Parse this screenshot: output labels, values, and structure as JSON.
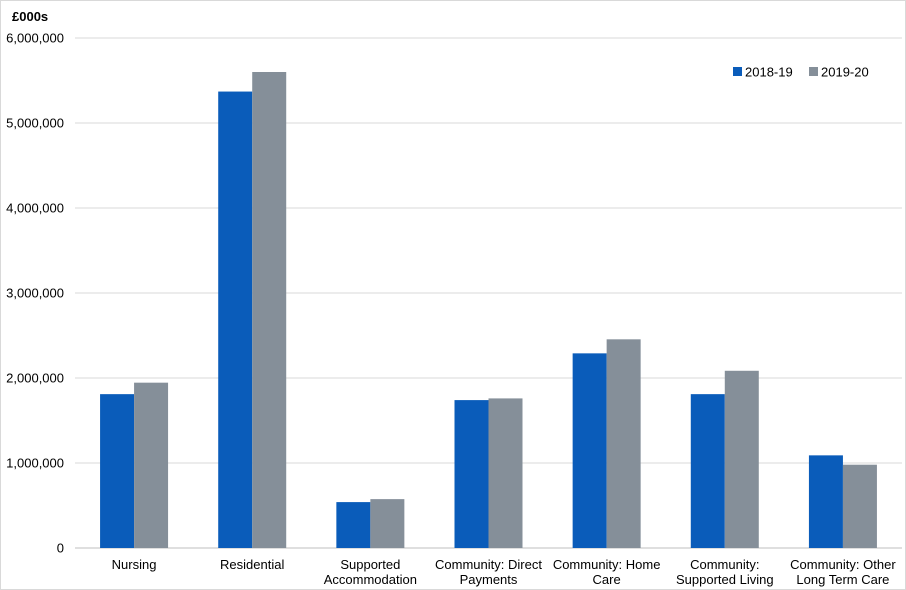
{
  "chart_data": {
    "type": "bar",
    "y_unit_label": "£000s",
    "categories": [
      [
        "Nursing"
      ],
      [
        "Residential"
      ],
      [
        "Supported",
        "Accommodation"
      ],
      [
        "Community: Direct",
        "Payments"
      ],
      [
        "Community: Home",
        "Care"
      ],
      [
        "Community:",
        "Supported Living"
      ],
      [
        "Community: Other",
        "Long Term Care"
      ]
    ],
    "series": [
      {
        "name": "2018-19",
        "color": "#0a5cba",
        "values": [
          1810000,
          5370000,
          540000,
          1740000,
          2290000,
          1810000,
          1090000
        ]
      },
      {
        "name": "2019-20",
        "color": "#858f99",
        "values": [
          1945000,
          5600000,
          575000,
          1760000,
          2455000,
          2085000,
          980000
        ]
      }
    ],
    "ylim": [
      0,
      6000000
    ],
    "yticks": [
      "0",
      "1,000,000",
      "2,000,000",
      "3,000,000",
      "4,000,000",
      "5,000,000",
      "6,000,000"
    ],
    "ytick_values": [
      0,
      1000000,
      2000000,
      3000000,
      4000000,
      5000000,
      6000000
    ],
    "grid": true,
    "legend_position": "top-right"
  }
}
